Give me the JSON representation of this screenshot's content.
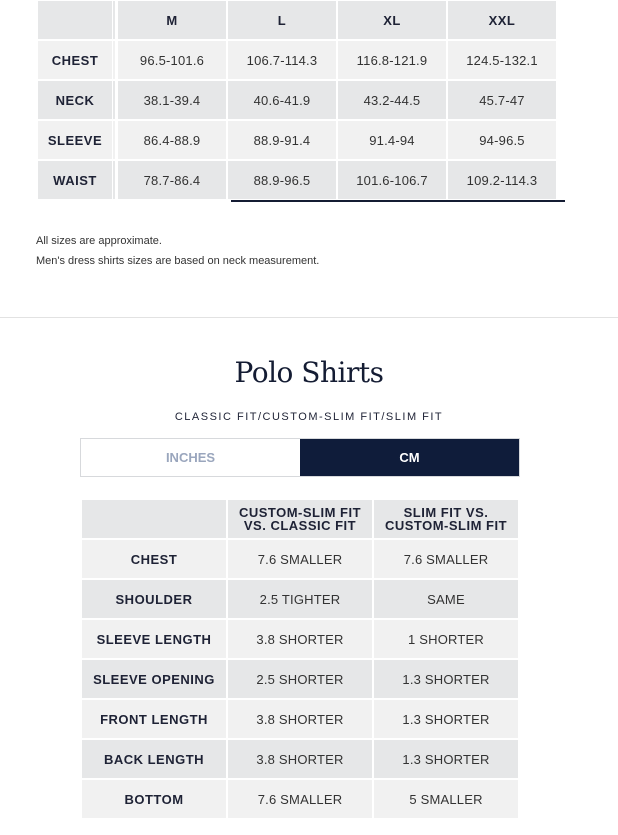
{
  "size_chart": {
    "columns": [
      "M",
      "L",
      "XL",
      "XXL"
    ],
    "rows": [
      {
        "label": "CHEST",
        "values": [
          "96.5-101.6",
          "106.7-114.3",
          "116.8-121.9",
          "124.5-132.1"
        ]
      },
      {
        "label": "NECK",
        "values": [
          "38.1-39.4",
          "40.6-41.9",
          "43.2-44.5",
          "45.7-47"
        ]
      },
      {
        "label": "SLEEVE",
        "values": [
          "86.4-88.9",
          "88.9-91.4",
          "91.4-94",
          "94-96.5"
        ]
      },
      {
        "label": "WAIST",
        "values": [
          "78.7-86.4",
          "88.9-96.5",
          "101.6-106.7",
          "109.2-114.3"
        ]
      }
    ]
  },
  "notes": [
    "All sizes are approximate.",
    "Men's dress shirts sizes are based on neck measurement."
  ],
  "polo": {
    "title": "Polo Shirts",
    "subtitle": "CLASSIC FIT/CUSTOM-SLIM FIT/SLIM FIT",
    "toggle": {
      "inches": "INCHES",
      "cm": "CM",
      "selected": "CM"
    },
    "columns": [
      [
        "CUSTOM-SLIM FIT",
        "VS. CLASSIC FIT"
      ],
      [
        "SLIM FIT VS.",
        "CUSTOM-SLIM FIT"
      ]
    ],
    "rows": [
      {
        "label": "CHEST",
        "values": [
          "7.6 SMALLER",
          "7.6 SMALLER"
        ]
      },
      {
        "label": "SHOULDER",
        "values": [
          "2.5 TIGHTER",
          "SAME"
        ]
      },
      {
        "label": "SLEEVE LENGTH",
        "values": [
          "3.8 SHORTER",
          "1 SHORTER"
        ]
      },
      {
        "label": "SLEEVE OPENING",
        "values": [
          "2.5 SHORTER",
          "1.3 SHORTER"
        ]
      },
      {
        "label": "FRONT LENGTH",
        "values": [
          "3.8 SHORTER",
          "1.3 SHORTER"
        ]
      },
      {
        "label": "BACK LENGTH",
        "values": [
          "3.8 SHORTER",
          "1.3 SHORTER"
        ]
      },
      {
        "label": "BOTTOM",
        "values": [
          "7.6 SMALLER",
          "5 SMALLER"
        ]
      }
    ]
  },
  "colors": {
    "navy": "#0f1c3a",
    "row_dark": "#e6e7e8",
    "row_light": "#f1f1f1",
    "inactive_tab": "#9aa6bd"
  }
}
